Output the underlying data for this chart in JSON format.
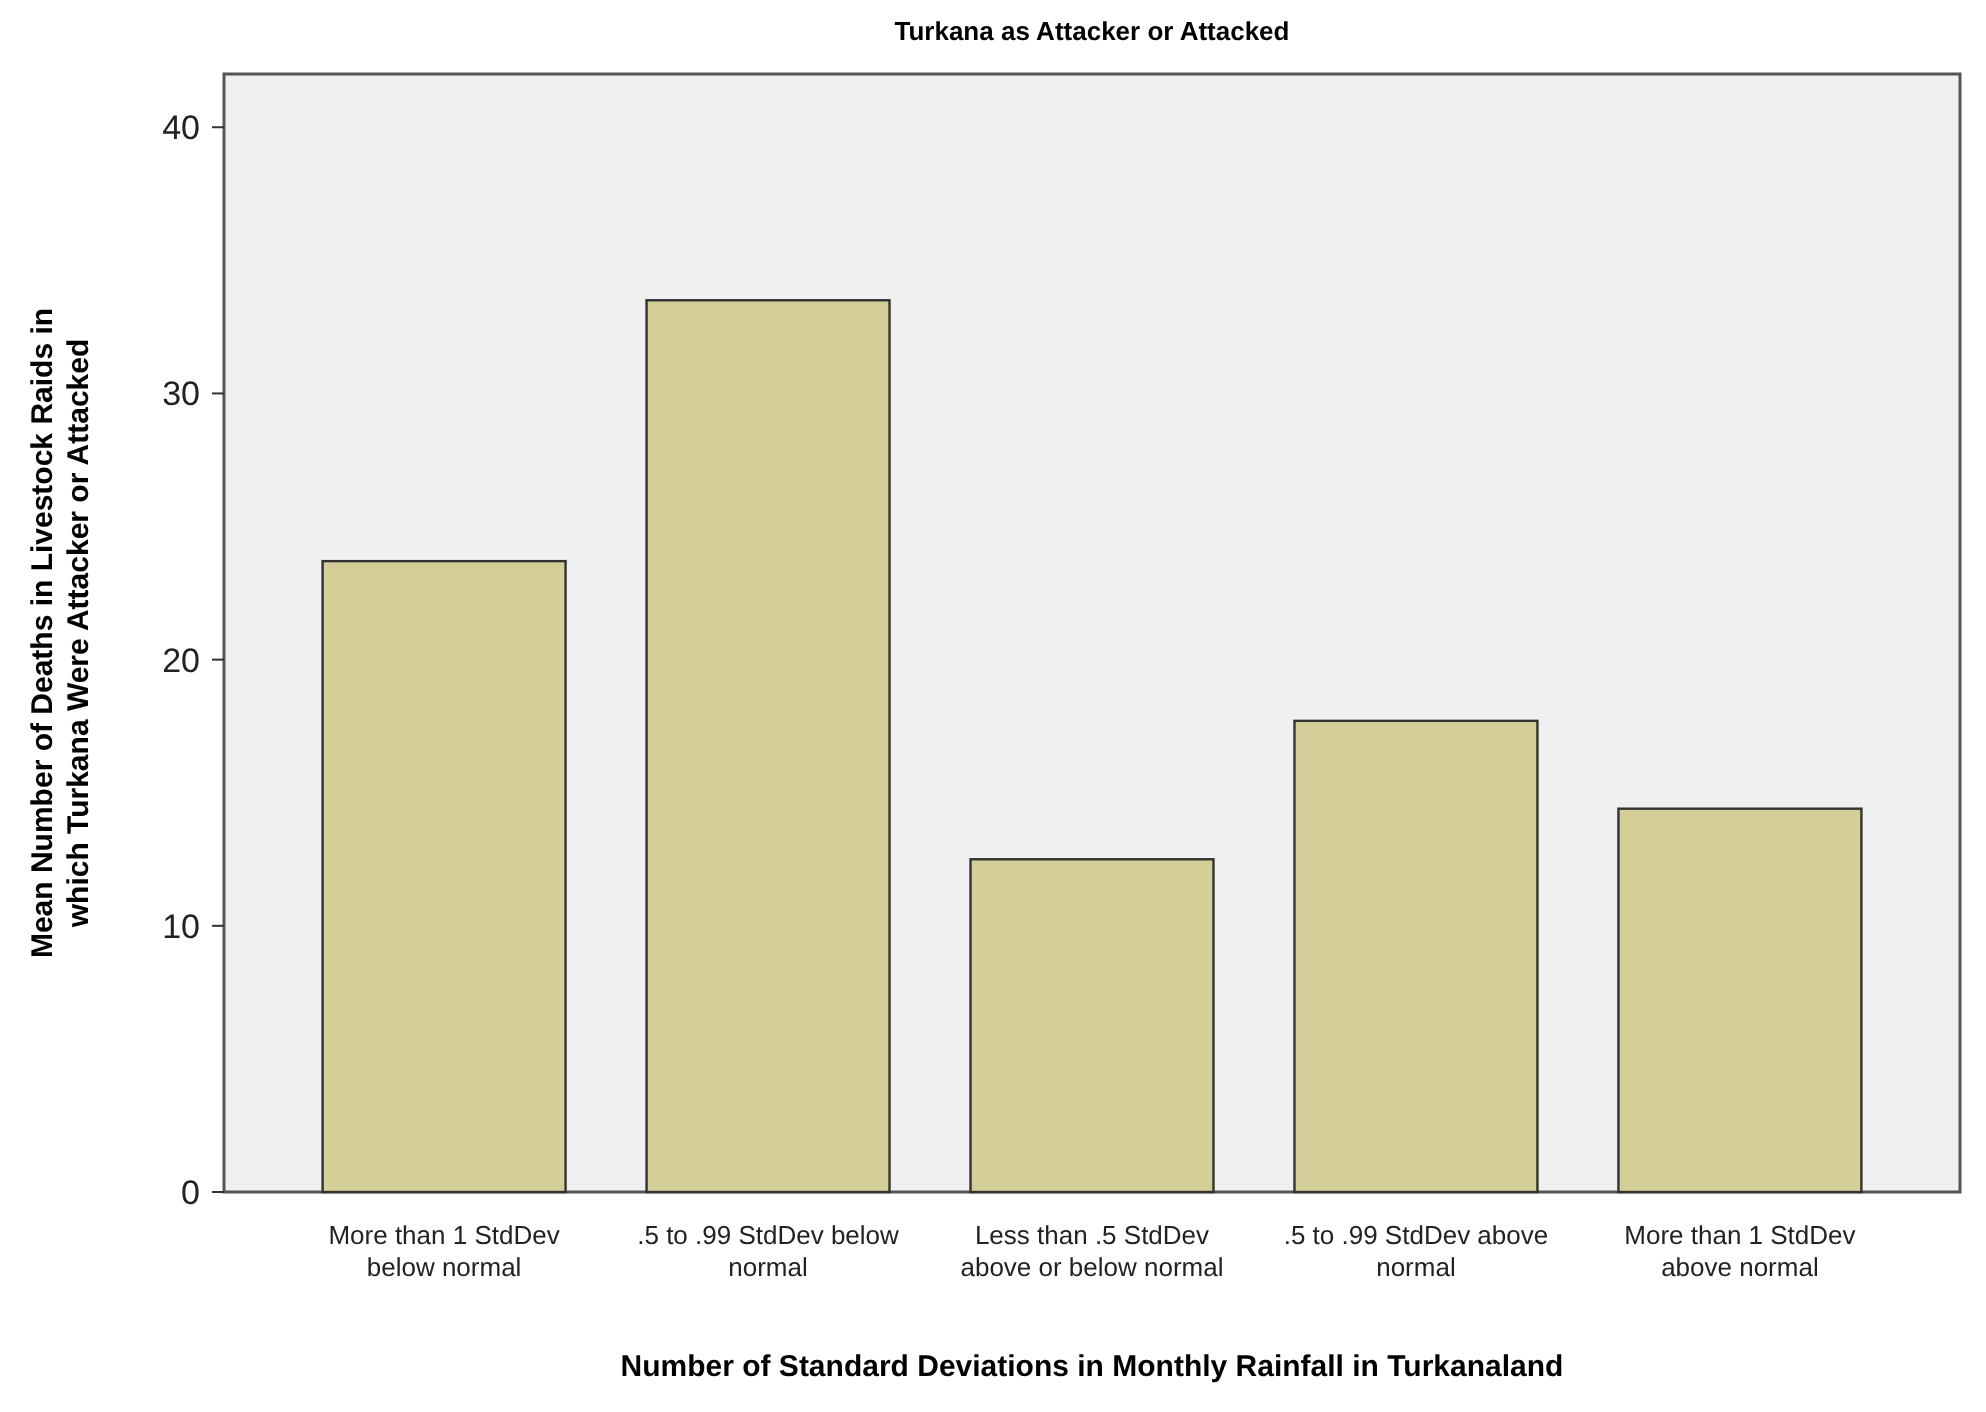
{
  "chart_data": {
    "type": "bar",
    "title": "Turkana as Attacker or Attacked",
    "xlabel": "Number of Standard Deviations in Monthly Rainfall in Turkanaland",
    "ylabel": "Mean Number of Deaths in Livestock Raids in which Turkana Were Attacker or Attacked",
    "categories": [
      "More than 1 StdDev below normal",
      ".5 to .99 StdDev below normal",
      "Less than .5 StdDev above or below normal",
      ".5 to .99 StdDev above normal",
      "More than 1 StdDev above normal"
    ],
    "values": [
      23.7,
      33.5,
      12.5,
      17.7,
      14.4
    ],
    "color": "#d4cf98",
    "ylim": [
      0,
      42
    ],
    "yticks": [
      0,
      10,
      20,
      30,
      40
    ],
    "grid": false
  }
}
